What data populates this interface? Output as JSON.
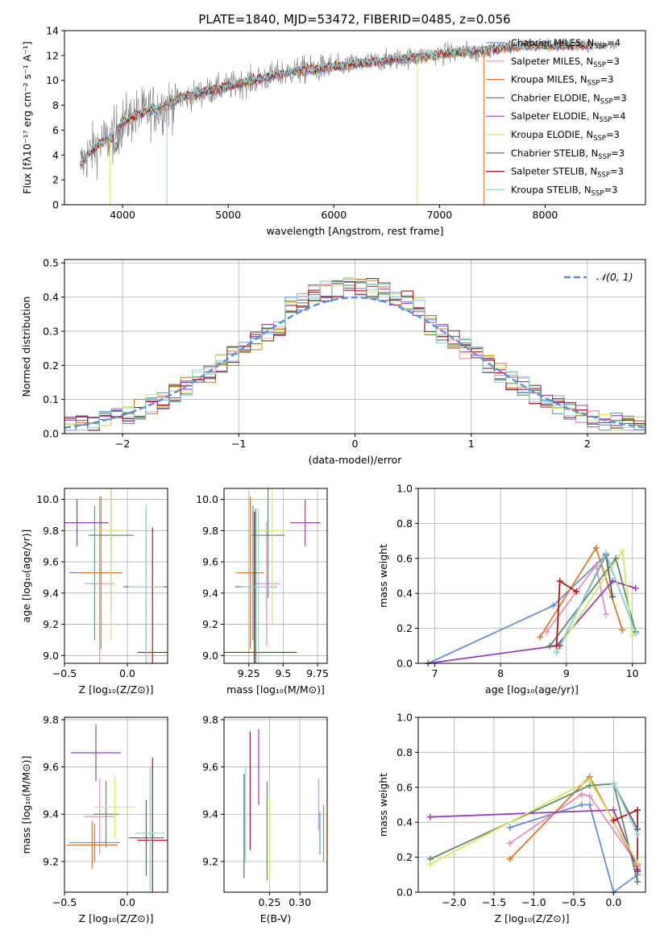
{
  "title": "PLATE=1840, MJD=53472, FIBERID=0485, z=0.056",
  "colors": {
    "chabrier_miles": "#6a8fd6",
    "salpeter_miles": "#e88fc0",
    "kroupa_miles": "#d97b2e",
    "chabrier_elodie": "#5e8c6a",
    "salpeter_elodie": "#9a3db5",
    "kroupa_elodie": "#d6e86b",
    "chabrier_stelib": "#606060",
    "salpeter_stelib": "#b01818",
    "kroupa_stelib": "#8fd6dc",
    "gaussian": "#5b8fd6",
    "data": "#888888",
    "grid": "#b0b0b0"
  },
  "legend_spectrum": [
    {
      "label": "Chabrier MILES, N",
      "sub": "SSP",
      "suffix": "=4",
      "key": "chabrier_miles"
    },
    {
      "label": "Salpeter MILES, N",
      "sub": "SSP",
      "suffix": "=3",
      "key": "salpeter_miles"
    },
    {
      "label": "Kroupa MILES, N",
      "sub": "SSP",
      "suffix": "=3",
      "key": "kroupa_miles"
    },
    {
      "label": "Chabrier ELODIE, N",
      "sub": "SSP",
      "suffix": "=3",
      "key": "chabrier_elodie"
    },
    {
      "label": "Salpeter ELODIE, N",
      "sub": "SSP",
      "suffix": "=4",
      "key": "salpeter_elodie"
    },
    {
      "label": "Kroupa ELODIE, N",
      "sub": "SSP",
      "suffix": "=3",
      "key": "kroupa_elodie"
    },
    {
      "label": "Chabrier STELIB, N",
      "sub": "SSP",
      "suffix": "=3",
      "key": "chabrier_stelib"
    },
    {
      "label": "Salpeter STELIB, N",
      "sub": "SSP",
      "suffix": "=3",
      "key": "salpeter_stelib"
    },
    {
      "label": "Kroupa STELIB, N",
      "sub": "SSP",
      "suffix": "=3",
      "key": "kroupa_stelib"
    }
  ],
  "chart_data": [
    {
      "id": "spectrum",
      "type": "line",
      "xlabel": "wavelength [Angstrom, rest frame]",
      "ylabel": "Flux [fλ10⁻¹⁷ erg cm⁻² s⁻¹ A⁻¹]",
      "xlim": [
        3450,
        8950
      ],
      "ylim": [
        0,
        14
      ],
      "xticks": [
        4000,
        5000,
        6000,
        7000,
        8000
      ],
      "yticks": [
        0,
        2,
        4,
        6,
        8,
        10,
        12,
        14
      ],
      "grid": false,
      "legend_position": "right",
      "continuum": {
        "x": [
          3600,
          3700,
          3800,
          3900,
          4000,
          4100,
          4200,
          4300,
          4400,
          4500,
          4700,
          5000,
          5300,
          5600,
          6000,
          6500,
          7000,
          7500,
          7800
        ],
        "y": [
          3.2,
          4.3,
          5.0,
          5.4,
          6.6,
          7.1,
          7.4,
          7.7,
          7.9,
          8.4,
          8.9,
          9.5,
          10.1,
          10.7,
          11.1,
          11.6,
          12.1,
          12.5,
          12.8
        ]
      }
    },
    {
      "id": "residuals",
      "type": "histogram",
      "xlabel": "(data-model)/error",
      "ylabel": "Normed distribution",
      "xlim": [
        -2.5,
        2.5
      ],
      "ylim": [
        0,
        0.51
      ],
      "xticks": [
        -2,
        -1,
        0,
        1,
        2
      ],
      "yticks": [
        0.0,
        0.1,
        0.2,
        0.3,
        0.4,
        0.5
      ],
      "grid": true,
      "legend": [
        {
          "label": "𝒩(0, 1)",
          "key": "gaussian"
        }
      ],
      "legend_position": "top-right"
    },
    {
      "id": "age-vs-Z",
      "type": "errorbar",
      "xlabel": "Z [log₁₀(Z/Z⊙)]",
      "ylabel": "age  [log₁₀(age/yr)]",
      "xlim": [
        -0.5,
        0.32
      ],
      "ylim": [
        8.95,
        10.07
      ],
      "xticks": [
        -0.5,
        0.0
      ],
      "yticks": [
        9.0,
        9.2,
        9.4,
        9.6,
        9.8,
        10.0
      ],
      "grid": true,
      "points": [
        {
          "key": "chabrier_miles",
          "x": -0.26,
          "xerr": 0.2,
          "y": 9.53,
          "yerr": 0.43
        },
        {
          "key": "salpeter_miles",
          "x": -0.22,
          "xerr": 0.12,
          "y": 9.46,
          "yerr": 0.56
        },
        {
          "key": "kroupa_miles",
          "x": -0.21,
          "xerr": 0.17,
          "y": 9.53,
          "yerr": 0.49
        },
        {
          "key": "chabrier_elodie",
          "x": -0.13,
          "xerr": 0.18,
          "y": 9.77,
          "yerr": 0.48
        },
        {
          "key": "salpeter_elodie",
          "x": -0.4,
          "xerr": 0.25,
          "y": 9.85,
          "yerr": 0.15
        },
        {
          "key": "kroupa_elodie",
          "x": -0.13,
          "xerr": 0.13,
          "y": 9.8,
          "yerr": 0.7
        },
        {
          "key": "chabrier_stelib",
          "x": 0.15,
          "xerr": 0.18,
          "y": 9.44,
          "yerr": 0.5
        },
        {
          "key": "salpeter_stelib",
          "x": 0.2,
          "xerr": 0.12,
          "y": 9.02,
          "yerr": 0.8
        },
        {
          "key": "kroupa_stelib",
          "x": 0.15,
          "xerr": 0.14,
          "y": 9.44,
          "yerr": 0.53
        }
      ]
    },
    {
      "id": "age-vs-mass",
      "type": "errorbar",
      "xlabel": "mass [log₁₀(M/M⊙)]",
      "ylabel": "",
      "xlim": [
        9.07,
        9.82
      ],
      "ylim": [
        8.95,
        10.07
      ],
      "xticks": [
        9.25,
        9.5,
        9.75
      ],
      "yticks": [
        9.0,
        9.2,
        9.4,
        9.6,
        9.8,
        10.0
      ],
      "grid": true,
      "points": [
        {
          "key": "chabrier_miles",
          "x": 9.28,
          "xerr": 0.08,
          "y": 9.53,
          "yerr": 0.43
        },
        {
          "key": "salpeter_miles",
          "x": 9.38,
          "xerr": 0.1,
          "y": 9.46,
          "yerr": 0.4
        },
        {
          "key": "kroupa_miles",
          "x": 9.26,
          "xerr": 0.1,
          "y": 9.53,
          "yerr": 0.49
        },
        {
          "key": "chabrier_elodie",
          "x": 9.39,
          "xerr": 0.12,
          "y": 9.77,
          "yerr": 0.4
        },
        {
          "key": "salpeter_elodie",
          "x": 9.66,
          "xerr": 0.11,
          "y": 9.85,
          "yerr": 0.15
        },
        {
          "key": "kroupa_elodie",
          "x": 9.42,
          "xerr": 0.12,
          "y": 9.8,
          "yerr": 0.6
        },
        {
          "key": "chabrier_stelib",
          "x": 9.3,
          "xerr": 0.15,
          "y": 9.44,
          "yerr": 0.5
        },
        {
          "key": "salpeter_stelib",
          "x": 9.29,
          "xerr": 0.31,
          "y": 9.02,
          "yerr": 0.9
        },
        {
          "key": "kroupa_stelib",
          "x": 9.32,
          "xerr": 0.12,
          "y": 9.44,
          "yerr": 0.5
        }
      ]
    },
    {
      "id": "massweight-vs-age",
      "type": "line",
      "xlabel": "age  [log₁₀(age/yr)]",
      "ylabel": "mass weight",
      "xlim": [
        6.75,
        10.2
      ],
      "ylim": [
        0,
        1
      ],
      "xticks": [
        7,
        8,
        9,
        10
      ],
      "yticks": [
        0.0,
        0.2,
        0.4,
        0.6,
        0.8,
        1.0
      ],
      "grid": true,
      "series": [
        {
          "key": "chabrier_miles",
          "x": [
            6.9,
            8.8,
            9.6,
            10.05
          ],
          "y": [
            0.0,
            0.33,
            0.62,
            0.18
          ]
        },
        {
          "key": "salpeter_miles",
          "x": [
            8.7,
            9.45,
            9.6
          ],
          "y": [
            0.18,
            0.56,
            0.28
          ]
        },
        {
          "key": "kroupa_miles",
          "x": [
            8.6,
            9.45,
            9.85
          ],
          "y": [
            0.15,
            0.66,
            0.19
          ]
        },
        {
          "key": "chabrier_elodie",
          "x": [
            8.75,
            9.75,
            10.05
          ],
          "y": [
            0.1,
            0.6,
            0.18
          ]
        },
        {
          "key": "salpeter_elodie",
          "x": [
            6.9,
            8.85,
            9.7,
            10.05
          ],
          "y": [
            0.0,
            0.1,
            0.47,
            0.43
          ]
        },
        {
          "key": "kroupa_elodie",
          "x": [
            8.85,
            9.85,
            10.0
          ],
          "y": [
            0.07,
            0.64,
            0.16
          ]
        },
        {
          "key": "chabrier_stelib",
          "x": [
            8.9,
            9.6,
            9.7
          ],
          "y": [
            0.1,
            0.62,
            0.38
          ]
        },
        {
          "key": "salpeter_stelib",
          "x": [
            8.85,
            8.9,
            9.15
          ],
          "y": [
            0.1,
            0.47,
            0.41
          ]
        },
        {
          "key": "kroupa_stelib",
          "x": [
            8.85,
            9.6,
            10.05
          ],
          "y": [
            0.06,
            0.63,
            0.17
          ]
        }
      ]
    },
    {
      "id": "mass-vs-Z",
      "type": "errorbar",
      "xlabel": "Z [log₁₀(Z/Z⊙)]",
      "ylabel": "mass [log₁₀(M/M⊙)]",
      "xlim": [
        -0.5,
        0.32
      ],
      "ylim": [
        9.07,
        9.81
      ],
      "xticks": [
        -0.5,
        0.0
      ],
      "yticks": [
        9.2,
        9.4,
        9.6,
        9.8
      ],
      "grid": true,
      "points": [
        {
          "key": "chabrier_miles",
          "x": -0.26,
          "xerr": 0.2,
          "y": 9.28,
          "yerr": 0.08
        },
        {
          "key": "salpeter_miles",
          "x": -0.22,
          "xerr": 0.12,
          "y": 9.39,
          "yerr": 0.16
        },
        {
          "key": "kroupa_miles",
          "x": -0.28,
          "xerr": 0.2,
          "y": 9.27,
          "yerr": 0.1
        },
        {
          "key": "chabrier_elodie",
          "x": -0.17,
          "xerr": 0.1,
          "y": 9.4,
          "yerr": 0.14
        },
        {
          "key": "salpeter_elodie",
          "x": -0.25,
          "xerr": 0.2,
          "y": 9.66,
          "yerr": 0.12
        },
        {
          "key": "kroupa_elodie",
          "x": -0.1,
          "xerr": 0.16,
          "y": 9.43,
          "yerr": 0.13
        },
        {
          "key": "chabrier_stelib",
          "x": 0.15,
          "xerr": 0.14,
          "y": 9.3,
          "yerr": 0.16
        },
        {
          "key": "salpeter_stelib",
          "x": 0.2,
          "xerr": 0.12,
          "y": 9.29,
          "yerr": 0.35
        },
        {
          "key": "kroupa_stelib",
          "x": 0.18,
          "xerr": 0.12,
          "y": 9.32,
          "yerr": 0.28
        }
      ]
    },
    {
      "id": "mass-vs-EBV",
      "type": "errorbar",
      "xlabel": "E(B-V)",
      "ylabel": "",
      "xlim": [
        0.175,
        0.345
      ],
      "ylim": [
        9.07,
        9.81
      ],
      "xticks": [
        0.25,
        0.3
      ],
      "xtick_labels": [
        "0.25",
        "0.30"
      ],
      "yticks": [
        9.2,
        9.4,
        9.6,
        9.8
      ],
      "grid": true,
      "points": [
        {
          "key": "salpeter_stelib",
          "x": 0.218,
          "xerr": 0.0,
          "y": 9.5,
          "yerr": 0.25
        },
        {
          "key": "salpeter_elodie",
          "x": 0.232,
          "xerr": 0.0,
          "y": 9.6,
          "yerr": 0.16
        },
        {
          "key": "chabrier_stelib",
          "x": 0.208,
          "xerr": 0.0,
          "y": 9.35,
          "yerr": 0.22
        },
        {
          "key": "kroupa_stelib",
          "x": 0.21,
          "xerr": 0.0,
          "y": 9.4,
          "yerr": 0.2
        },
        {
          "key": "chabrier_elodie",
          "x": 0.246,
          "xerr": 0.0,
          "y": 9.33,
          "yerr": 0.21
        },
        {
          "key": "kroupa_elodie",
          "x": 0.25,
          "xerr": 0.0,
          "y": 9.3,
          "yerr": 0.18
        },
        {
          "key": "salpeter_miles",
          "x": 0.331,
          "xerr": 0.0,
          "y": 9.44,
          "yerr": 0.11
        },
        {
          "key": "chabrier_miles",
          "x": 0.333,
          "xerr": 0.0,
          "y": 9.32,
          "yerr": 0.09
        },
        {
          "key": "kroupa_miles",
          "x": 0.339,
          "xerr": 0.0,
          "y": 9.32,
          "yerr": 0.12
        }
      ]
    },
    {
      "id": "massweight-vs-Z",
      "type": "line",
      "xlabel": "Z [log₁₀(Z/Z⊙)]",
      "ylabel": "mass weight",
      "xlim": [
        -2.45,
        0.4
      ],
      "ylim": [
        0,
        1
      ],
      "xticks": [
        -2.0,
        -1.5,
        -1.0,
        -0.5,
        0.0
      ],
      "yticks": [
        0.0,
        0.2,
        0.4,
        0.6,
        0.8,
        1.0
      ],
      "grid": true,
      "series": [
        {
          "key": "chabrier_miles",
          "x": [
            -1.3,
            -0.4,
            -0.3,
            0.0,
            0.3
          ],
          "y": [
            0.37,
            0.5,
            0.5,
            0.0,
            0.1
          ]
        },
        {
          "key": "salpeter_miles",
          "x": [
            -1.3,
            -0.4,
            -0.3,
            0.3
          ],
          "y": [
            0.28,
            0.56,
            0.55,
            0.16
          ]
        },
        {
          "key": "kroupa_miles",
          "x": [
            -1.3,
            -0.3,
            0.3
          ],
          "y": [
            0.19,
            0.66,
            0.15
          ]
        },
        {
          "key": "chabrier_elodie",
          "x": [
            -2.3,
            -0.3,
            0.0,
            0.3
          ],
          "y": [
            0.19,
            0.61,
            0.62,
            0.06
          ]
        },
        {
          "key": "salpeter_elodie",
          "x": [
            -2.3,
            0.0,
            0.3
          ],
          "y": [
            0.43,
            0.47,
            0.13
          ]
        },
        {
          "key": "kroupa_elodie",
          "x": [
            -2.3,
            -0.3,
            0.3
          ],
          "y": [
            0.16,
            0.64,
            0.17
          ]
        },
        {
          "key": "chabrier_stelib",
          "x": [
            0.0,
            0.3
          ],
          "y": [
            0.62,
            0.36
          ]
        },
        {
          "key": "salpeter_stelib",
          "x": [
            0.0,
            0.3,
            0.3
          ],
          "y": [
            0.41,
            0.47,
            0.12
          ]
        },
        {
          "key": "kroupa_stelib",
          "x": [
            0.0,
            0.3
          ],
          "y": [
            0.62,
            0.33
          ]
        }
      ]
    }
  ]
}
